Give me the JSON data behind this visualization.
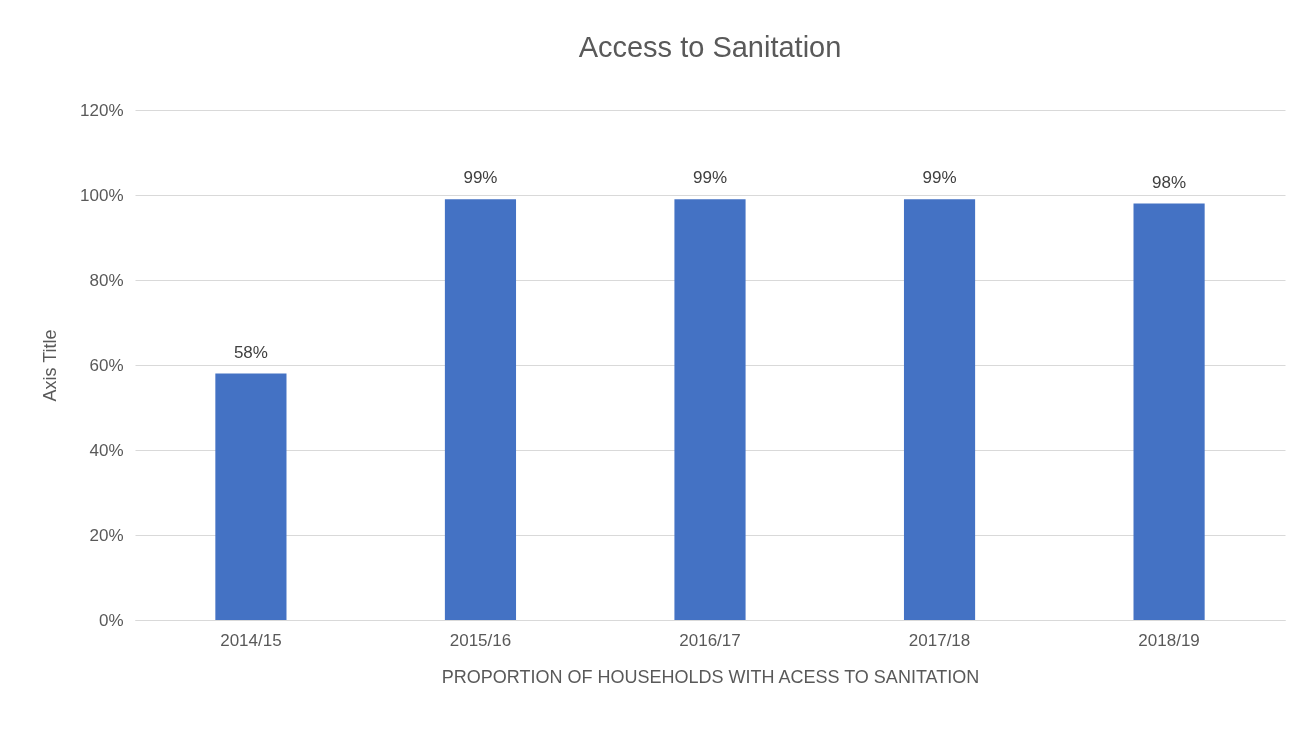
{
  "chart_data": {
    "type": "bar",
    "title": "Access to Sanitation",
    "xlabel": "PROPORTION OF HOUSEHOLDS WITH ACESS TO SANITATION",
    "ylabel": "Axis Title",
    "categories": [
      "2014/15",
      "2015/16",
      "2016/17",
      "2017/18",
      "2018/19"
    ],
    "values": [
      58,
      99,
      99,
      99,
      98
    ],
    "value_labels": [
      "58%",
      "99%",
      "99%",
      "99%",
      "98%"
    ],
    "color": "#4472c4",
    "ylim": [
      0,
      120
    ],
    "yticks": [
      {
        "value": 0,
        "label": "0%"
      },
      {
        "value": 20,
        "label": "20%"
      },
      {
        "value": 40,
        "label": "40%"
      },
      {
        "value": 60,
        "label": "60%"
      },
      {
        "value": 80,
        "label": "80%"
      },
      {
        "value": 100,
        "label": "100%"
      },
      {
        "value": 120,
        "label": "120%"
      }
    ],
    "grid": "y"
  }
}
